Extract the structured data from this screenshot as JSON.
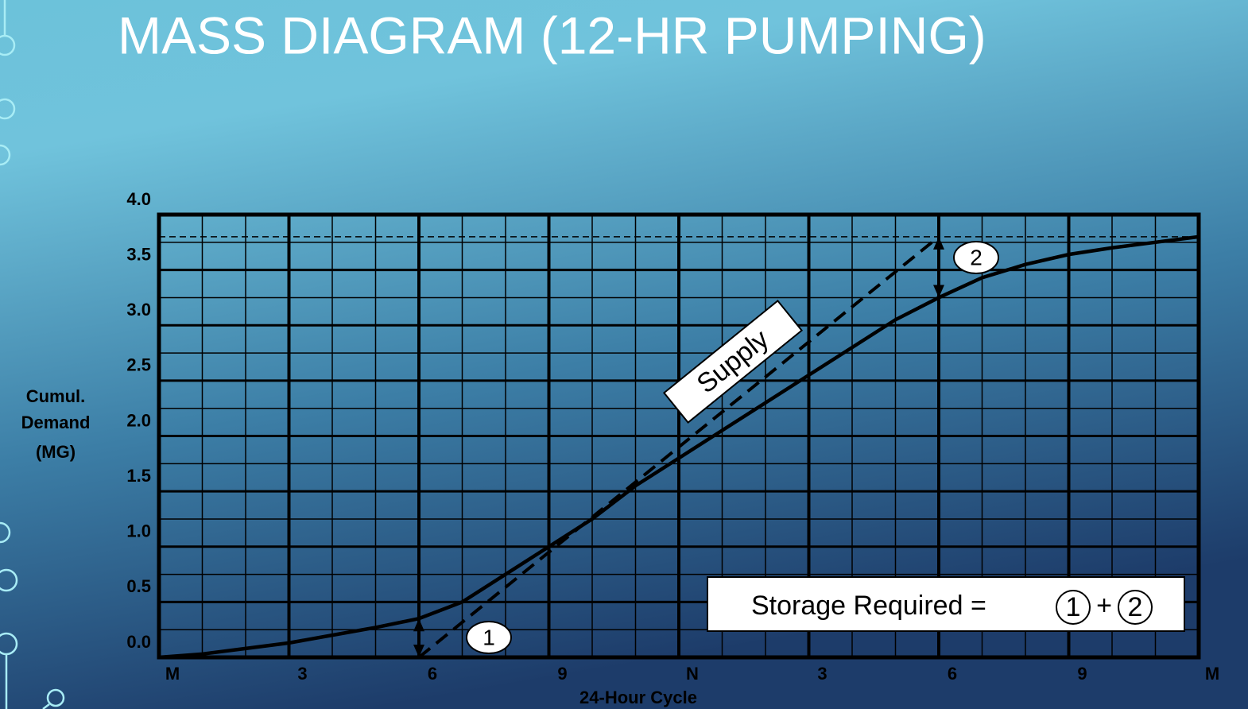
{
  "chart_data": {
    "type": "line",
    "title": "MASS DIAGRAM (12-HR PUMPING)",
    "x_label": "24-Hour Cycle",
    "y_label": [
      "Cumul.",
      "Demand",
      "(MG)"
    ],
    "xlim": [
      0,
      24
    ],
    "ylim": [
      0,
      4
    ],
    "xticks": [
      {
        "value": 0,
        "label": "M"
      },
      3,
      6,
      9,
      {
        "value": 12,
        "label": "N"
      },
      {
        "value": 15,
        "label": "3"
      },
      {
        "value": 18,
        "label": "6"
      },
      {
        "value": 21,
        "label": "9"
      },
      {
        "value": 24,
        "label": "M"
      }
    ],
    "yticks": [
      {
        "value": 0,
        "label": "0.0"
      },
      0.5,
      {
        "value": 1,
        "label": "1.0"
      },
      1.5,
      {
        "value": 2,
        "label": "2.0"
      },
      2.5,
      {
        "value": 3,
        "label": "3.0"
      },
      3.5,
      {
        "value": 4,
        "label": "4.0"
      }
    ],
    "grid": true,
    "reference_y": 3.8,
    "series": [
      {
        "name": "Demand",
        "color": "#000000",
        "dashed": false,
        "x": [
          0,
          1,
          2,
          3,
          4,
          5,
          6,
          7,
          8,
          9,
          10,
          11,
          12,
          13,
          14,
          15,
          16,
          17,
          18,
          19,
          20,
          21,
          22,
          23,
          24
        ],
        "values": [
          0,
          0.03,
          0.08,
          0.13,
          0.2,
          0.27,
          0.35,
          0.5,
          0.75,
          1.0,
          1.25,
          1.55,
          1.8,
          2.05,
          2.3,
          2.55,
          2.8,
          3.05,
          3.25,
          3.43,
          3.55,
          3.64,
          3.7,
          3.75,
          3.8
        ]
      },
      {
        "name": "Supply",
        "color": "#000000",
        "dashed": true,
        "x": [
          6,
          18
        ],
        "values": [
          0,
          3.8
        ]
      }
    ],
    "annotations": [
      "Supply",
      "1",
      "2"
    ],
    "note": [
      "Storage Required =",
      "1",
      "+",
      "2"
    ]
  }
}
